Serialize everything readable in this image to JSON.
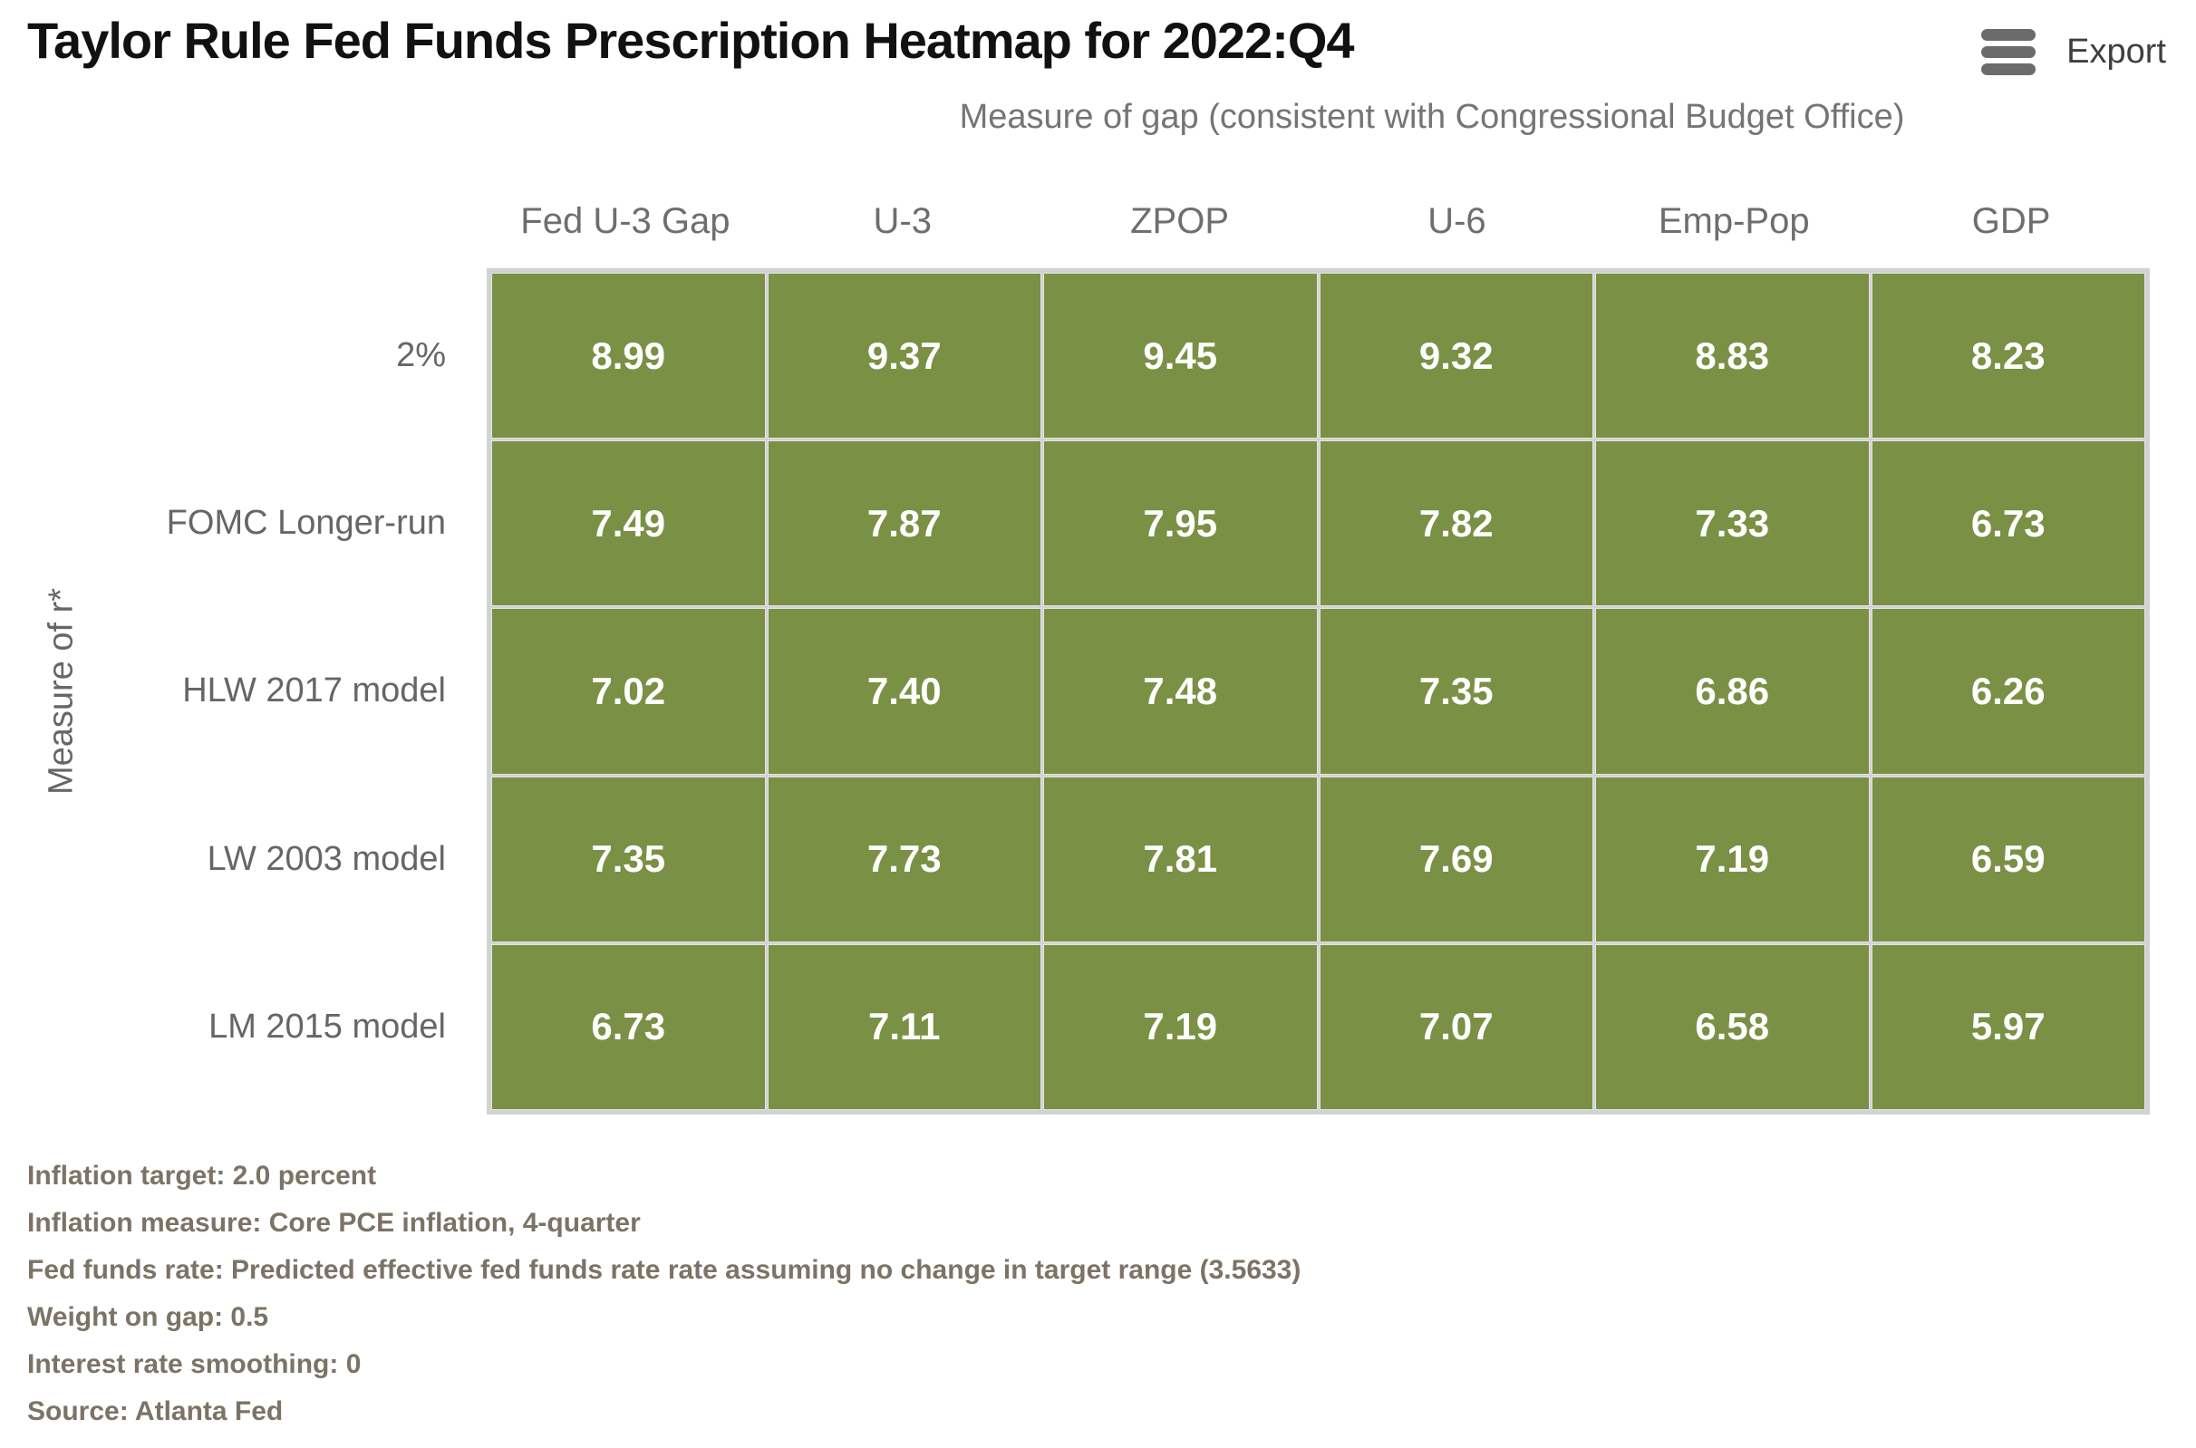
{
  "header": {
    "title": "Taylor Rule Fed Funds Prescription Heatmap for 2022:Q4",
    "export": {
      "label": "Export",
      "icon": "hamburger-menu-icon"
    }
  },
  "chart_data": {
    "type": "heatmap",
    "title": "Taylor Rule Fed Funds Prescription Heatmap for 2022:Q4",
    "x_axis_label": "Measure of gap (consistent with Congressional Budget Office)",
    "y_axis_label": "Measure of r*",
    "columns": [
      "Fed U-3 Gap",
      "U-3",
      "ZPOP",
      "U-6",
      "Emp-Pop",
      "GDP"
    ],
    "rows": [
      "2%",
      "FOMC Longer-run",
      "HLW 2017 model",
      "LW 2003 model",
      "LM 2015 model"
    ],
    "values": [
      [
        8.99,
        9.37,
        9.45,
        9.32,
        8.83,
        8.23
      ],
      [
        7.49,
        7.87,
        7.95,
        7.82,
        7.33,
        6.73
      ],
      [
        7.02,
        7.4,
        7.48,
        7.35,
        6.86,
        6.26
      ],
      [
        7.35,
        7.73,
        7.81,
        7.69,
        7.19,
        6.59
      ],
      [
        6.73,
        7.11,
        7.19,
        7.07,
        6.58,
        5.97
      ]
    ],
    "cell_labels": [
      [
        "8.99",
        "9.37",
        "9.45",
        "9.32",
        "8.83",
        "8.23"
      ],
      [
        "7.49",
        "7.87",
        "7.95",
        "7.82",
        "7.33",
        "6.73"
      ],
      [
        "7.02",
        "7.40",
        "7.48",
        "7.35",
        "6.86",
        "6.26"
      ],
      [
        "7.35",
        "7.73",
        "7.81",
        "7.69",
        "7.19",
        "6.59"
      ],
      [
        "6.73",
        "7.11",
        "7.19",
        "7.07",
        "6.58",
        "5.97"
      ]
    ],
    "value_range": [
      5.97,
      9.45
    ],
    "legend": "none",
    "grid": "on",
    "cell_color": "#7a9044",
    "grid_frame_color": "#d2d2d2"
  },
  "footnotes": [
    "Inflation target: 2.0 percent",
    "Inflation measure: Core PCE inflation, 4-quarter",
    "Fed funds rate: Predicted effective fed funds rate rate assuming no change in target range (3.5633)",
    "Weight on gap: 0.5",
    "Interest rate smoothing: 0",
    "Source: Atlanta Fed"
  ],
  "colors": {
    "title_text": "#111111",
    "subtitle_text": "#757575",
    "axis_label_text": "#6e6e6e",
    "row_label_text": "#666666",
    "cell_value_text": "#ffffff",
    "cell_green": "#7a9044",
    "grid_line": "#d2d2d2",
    "footnote_text": "#7c7366",
    "export_text": "#3f3f3f",
    "menu_icon": "#6b6b6b"
  }
}
